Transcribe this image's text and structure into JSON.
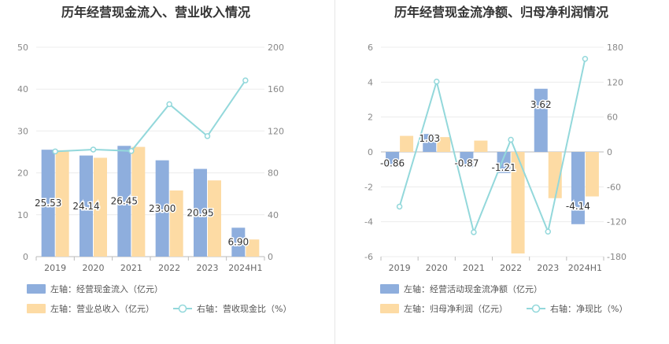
{
  "chart_data": [
    {
      "type": "bar+line",
      "title": "历年经营现金流入、营业收入情况",
      "categories": [
        "2019",
        "2020",
        "2021",
        "2022",
        "2023",
        "2024H1"
      ],
      "left_axis": {
        "ticks": [
          "0",
          "10",
          "20",
          "30",
          "40",
          "50"
        ],
        "range": [
          0,
          50
        ]
      },
      "right_axis": {
        "ticks": [
          "0",
          "40",
          "80",
          "120",
          "160",
          "200"
        ],
        "range": [
          0,
          200
        ]
      },
      "series": [
        {
          "name": "左轴：经营现金流入（亿元）",
          "kind": "bar",
          "axis": "left",
          "color": "#8eaedd",
          "values": [
            25.53,
            24.14,
            26.45,
            23.0,
            20.95,
            6.9
          ],
          "labels": [
            "25.53",
            "24.14",
            "26.45",
            "23.00",
            "20.95",
            "6.90"
          ]
        },
        {
          "name": "左轴：营业总收入（亿元）",
          "kind": "bar",
          "axis": "left",
          "color": "#fddba4",
          "values": [
            25.4,
            23.6,
            26.2,
            15.8,
            18.2,
            4.1
          ]
        },
        {
          "name": "右轴：营收现金比（%）",
          "kind": "line",
          "axis": "right",
          "color": "#93d8db",
          "values": [
            100.5,
            102.3,
            100.9,
            145.6,
            115.1,
            168.3
          ]
        }
      ]
    },
    {
      "type": "bar+line",
      "title": "历年经营现金流净额、归母净利润情况",
      "categories": [
        "2019",
        "2020",
        "2021",
        "2022",
        "2023",
        "2024H1"
      ],
      "left_axis": {
        "ticks": [
          "-6",
          "-4",
          "-2",
          "0",
          "2",
          "4",
          "6"
        ],
        "range": [
          -6,
          6
        ]
      },
      "right_axis": {
        "ticks": [
          "-180",
          "-120",
          "-60",
          "0",
          "60",
          "120",
          "180"
        ],
        "range": [
          -180,
          180
        ]
      },
      "series": [
        {
          "name": "左轴：经营活动现金流净额（亿元）",
          "kind": "bar",
          "axis": "left",
          "color": "#8eaedd",
          "values": [
            -0.86,
            1.03,
            -0.87,
            -1.21,
            3.62,
            -4.14
          ],
          "labels": [
            "-0.86",
            "1.03",
            "-0.87",
            "-1.21",
            "3.62",
            "-4.14"
          ]
        },
        {
          "name": "左轴：归母净利润（亿元）",
          "kind": "bar",
          "axis": "left",
          "color": "#fddba4",
          "values": [
            0.92,
            0.85,
            0.65,
            -5.82,
            -2.65,
            -2.55
          ]
        },
        {
          "name": "右轴：净现比（%）",
          "kind": "line",
          "axis": "right",
          "color": "#93d8db",
          "values": [
            -94,
            121,
            -138,
            21,
            -137,
            160
          ]
        }
      ]
    }
  ]
}
